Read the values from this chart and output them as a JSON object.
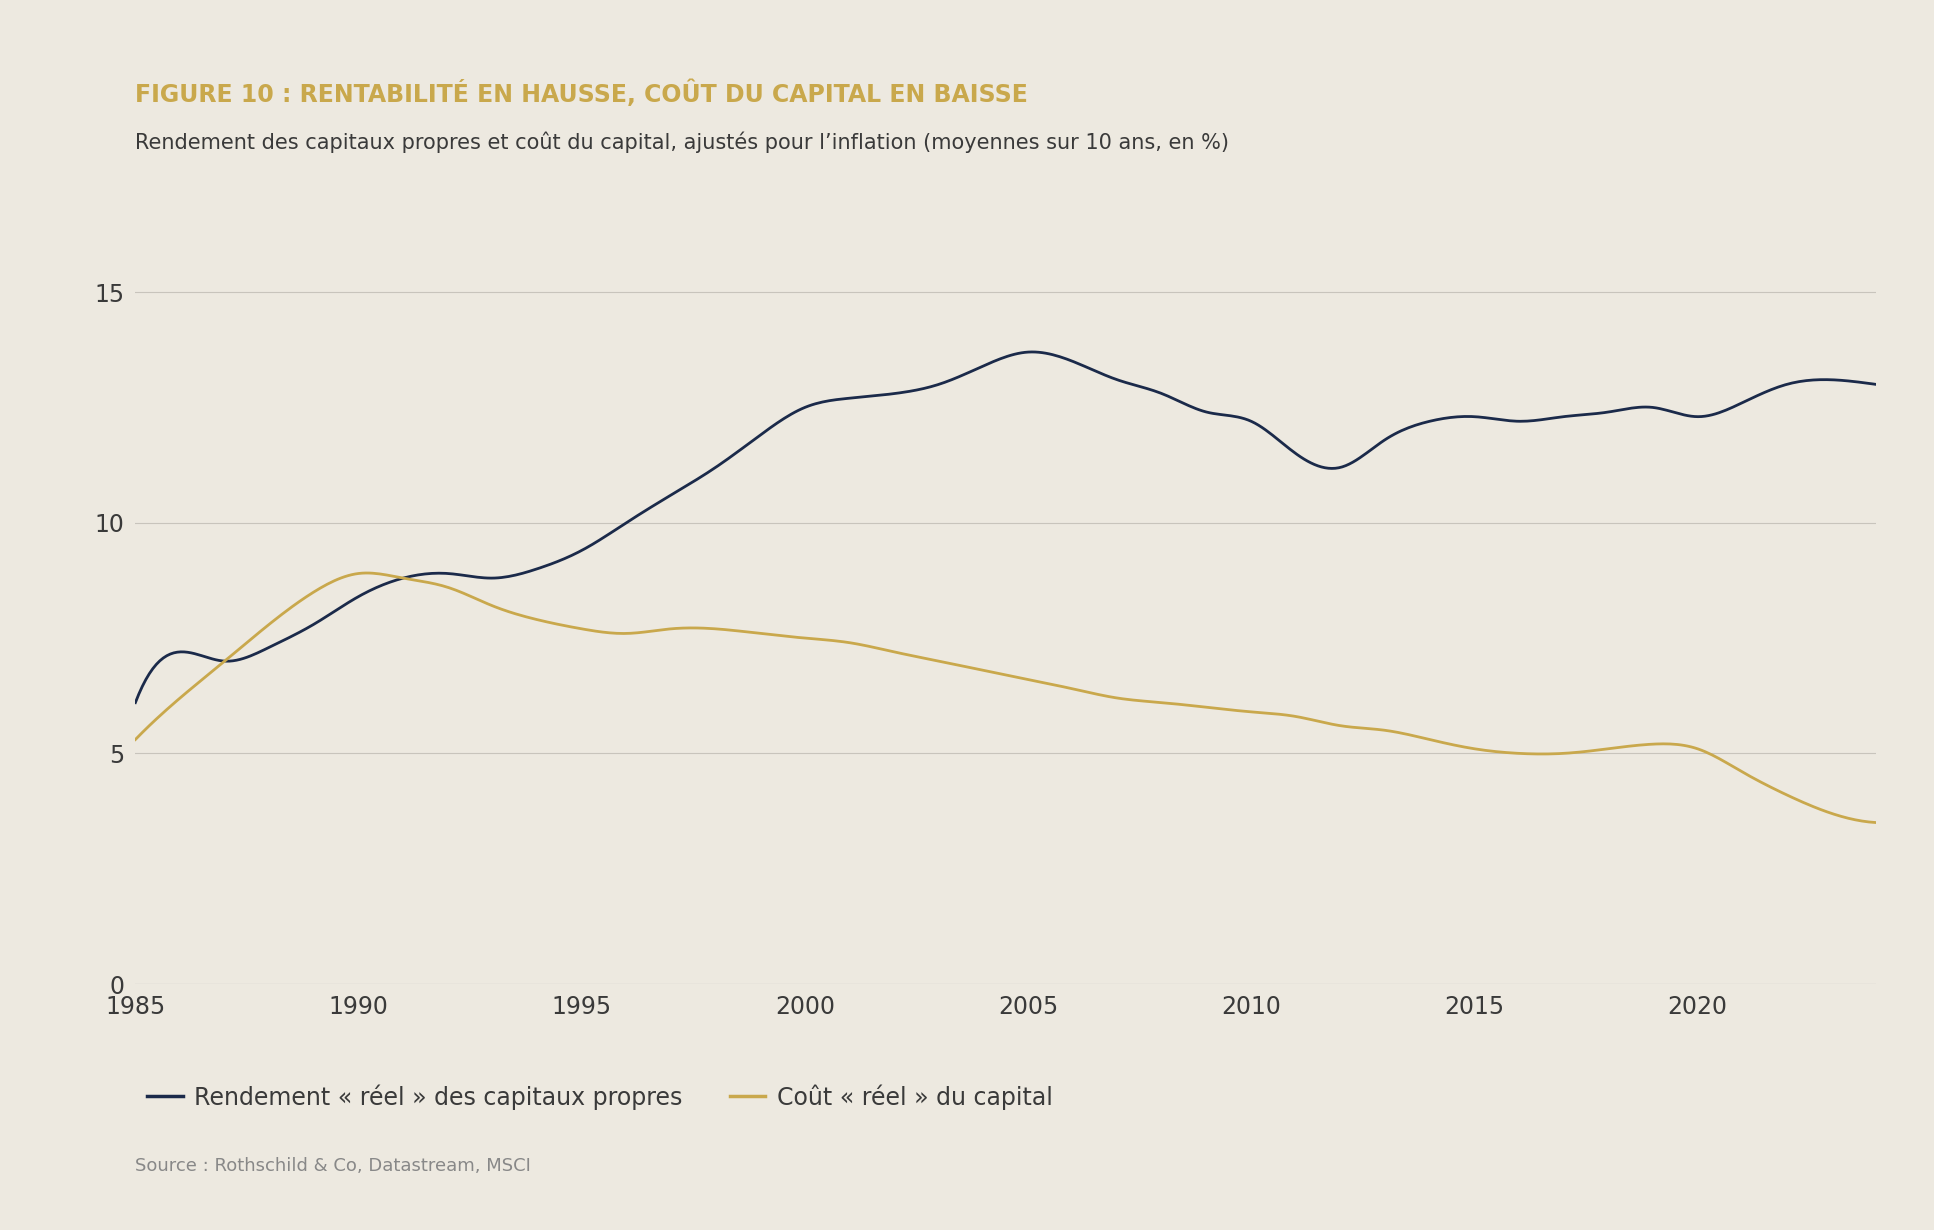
{
  "title": "FIGURE 10 : RENTABILITÉ EN HAUSSE, COÛT DU CAPITAL EN BAISSE",
  "subtitle": "Rendement des capitaux propres et coût du capital, ajustés pour l’inflation (moyennes sur 10 ans, en %)",
  "source": "Source : Rothschild & Co, Datastream, MSCI",
  "legend1": "Rendement « réel » des capitaux propres",
  "legend2": "Coût « réel » du capital",
  "background_color": "#EDE9E0",
  "navy_color": "#1B2A4A",
  "gold_color": "#C9A84C",
  "title_color": "#C9A84C",
  "text_color": "#3A3A3A",
  "source_color": "#888888",
  "grid_color": "#C8C4BC",
  "ylim": [
    0,
    16
  ],
  "yticks": [
    0,
    5,
    10,
    15
  ],
  "xlim": [
    1985,
    2024
  ],
  "xticks": [
    1985,
    1990,
    1995,
    2000,
    2005,
    2010,
    2015,
    2020
  ],
  "navy_x": [
    1985,
    1986,
    1987,
    1988,
    1989,
    1990,
    1991,
    1992,
    1993,
    1994,
    1995,
    1996,
    1997,
    1998,
    1999,
    2000,
    2001,
    2002,
    2003,
    2004,
    2005,
    2006,
    2007,
    2008,
    2009,
    2010,
    2011,
    2012,
    2013,
    2014,
    2015,
    2016,
    2017,
    2018,
    2019,
    2020,
    2021,
    2022,
    2023,
    2024
  ],
  "navy_y": [
    6.1,
    7.2,
    7.0,
    7.3,
    7.8,
    8.4,
    8.8,
    8.9,
    8.8,
    9.0,
    9.4,
    10.0,
    10.6,
    11.2,
    11.9,
    12.5,
    12.7,
    12.8,
    13.0,
    13.4,
    13.7,
    13.5,
    13.1,
    12.8,
    12.4,
    12.2,
    11.5,
    11.2,
    11.8,
    12.2,
    12.3,
    12.2,
    12.3,
    12.4,
    12.5,
    12.3,
    12.6,
    13.0,
    13.1,
    13.0
  ],
  "gold_x": [
    1985,
    1986,
    1987,
    1988,
    1989,
    1990,
    1991,
    1992,
    1993,
    1994,
    1995,
    1996,
    1997,
    1998,
    1999,
    2000,
    2001,
    2002,
    2003,
    2004,
    2005,
    2006,
    2007,
    2008,
    2009,
    2010,
    2011,
    2012,
    2013,
    2014,
    2015,
    2016,
    2017,
    2018,
    2019,
    2020,
    2021,
    2022,
    2023,
    2024
  ],
  "gold_y": [
    5.3,
    6.2,
    7.0,
    7.8,
    8.5,
    8.9,
    8.8,
    8.6,
    8.2,
    7.9,
    7.7,
    7.6,
    7.7,
    7.7,
    7.6,
    7.5,
    7.4,
    7.2,
    7.0,
    6.8,
    6.6,
    6.4,
    6.2,
    6.1,
    6.0,
    5.9,
    5.8,
    5.6,
    5.5,
    5.3,
    5.1,
    5.0,
    5.0,
    5.1,
    5.2,
    5.1,
    4.6,
    4.1,
    3.7,
    3.5
  ],
  "title_fontsize": 17,
  "subtitle_fontsize": 15,
  "tick_fontsize": 17,
  "legend_fontsize": 17,
  "source_fontsize": 13
}
